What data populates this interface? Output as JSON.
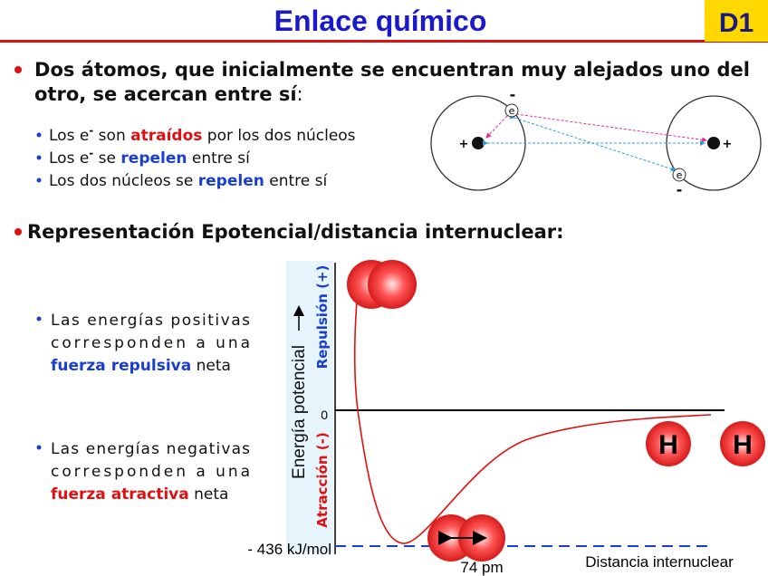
{
  "header": {
    "title": "Enlace químico",
    "badge": "D1"
  },
  "intro": {
    "line1": "Dos átomos, que inicialmente se encuentran muy alejados  uno del",
    "line2": "otro, se acercan entre sí",
    "colon": ":"
  },
  "forces": [
    [
      "Los e",
      "-",
      " son ",
      "atraídos",
      " por los dos núcleos"
    ],
    [
      "Los e",
      "-",
      " se ",
      "repelen",
      " entre sí"
    ],
    [
      "Los dos núcleos se ",
      "repelen",
      " entre sí"
    ]
  ],
  "atoms": {
    "electrons": [
      "e",
      "e"
    ],
    "electron_charges": [
      "-",
      "-"
    ],
    "nucleus_charges": [
      "+",
      "+"
    ]
  },
  "section2": "Representación Epotencial/distancia internuclear:",
  "notes": [
    {
      "lines": [
        "Las energías positivas",
        "corresponden a una"
      ],
      "highlight": "fuerza repulsiva",
      "tail": " neta"
    },
    {
      "lines": [
        "Las energías negativas",
        "corresponden a una"
      ],
      "highlight": "fuerza atractiva",
      "tail": " neta"
    }
  ],
  "plot": {
    "y_label": "Energía potencial",
    "repulsion": "Repulsión (+)",
    "attraction": "Atracción  (-)",
    "zero": "0",
    "minimum": "- 436 kJ/mol",
    "distance": "74 pm",
    "x_label": "Distancia internuclear",
    "atom_labels": [
      "H",
      "H"
    ]
  }
}
